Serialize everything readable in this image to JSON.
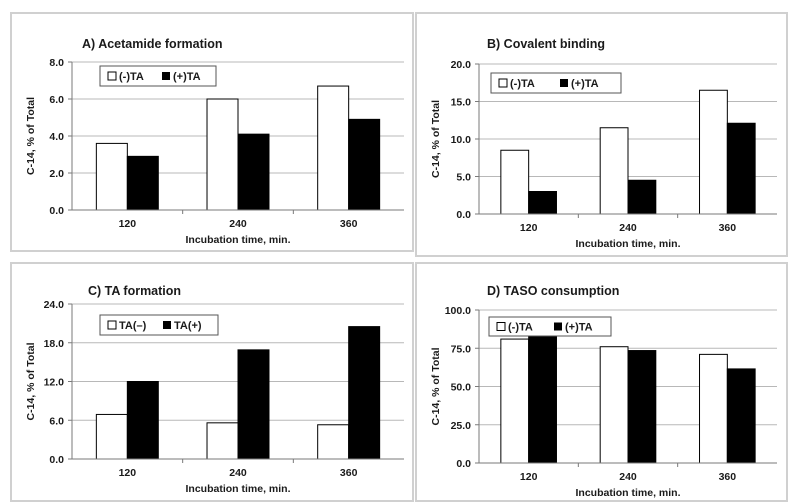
{
  "chart_data": [
    {
      "type": "bar",
      "title": "A) Acetamide formation",
      "ylabel": "C-14, % of Total",
      "xlabel": "Incubation time, min.",
      "categories": [
        "120",
        "240",
        "360"
      ],
      "ylim": [
        0,
        8
      ],
      "yticks": [
        "0.0",
        "2.0",
        "4.0",
        "6.0",
        "8.0"
      ],
      "series": [
        {
          "name": "(-)TA",
          "values": [
            3.6,
            6.0,
            6.7
          ],
          "color": "#ffffff"
        },
        {
          "name": "(+)TA",
          "values": [
            2.9,
            4.1,
            4.9
          ],
          "color": "#000000"
        }
      ],
      "legend": "top-left",
      "grid": true
    },
    {
      "type": "bar",
      "title": "B) Covalent binding",
      "ylabel": "C-14, % of Total",
      "xlabel": "Incubation time, min.",
      "categories": [
        "120",
        "240",
        "360"
      ],
      "ylim": [
        0,
        20
      ],
      "yticks": [
        "0.0",
        "5.0",
        "10.0",
        "15.0",
        "20.0"
      ],
      "series": [
        {
          "name": "(-)TA",
          "values": [
            8.5,
            11.5,
            16.5
          ],
          "color": "#ffffff"
        },
        {
          "name": "(+)TA",
          "values": [
            3.0,
            4.5,
            12.1
          ],
          "color": "#000000"
        }
      ],
      "legend": "top-left",
      "grid": true
    },
    {
      "type": "bar",
      "title": "C) TA formation",
      "ylabel": "C-14, % of Total",
      "xlabel": "Incubation time, min.",
      "categories": [
        "120",
        "240",
        "360"
      ],
      "ylim": [
        0,
        24
      ],
      "yticks": [
        "0.0",
        "6.0",
        "12.0",
        "18.0",
        "24.0"
      ],
      "series": [
        {
          "name": "TA(–)",
          "values": [
            6.9,
            5.6,
            5.3
          ],
          "color": "#ffffff"
        },
        {
          "name": "TA(+)",
          "values": [
            12.0,
            16.9,
            20.5
          ],
          "color": "#000000"
        }
      ],
      "legend": "top-left",
      "grid": true
    },
    {
      "type": "bar",
      "title": "D) TASO consumption",
      "ylabel": "C-14, % of Total",
      "xlabel": "Incubation time, min.",
      "categories": [
        "120",
        "240",
        "360"
      ],
      "ylim": [
        0,
        100
      ],
      "yticks": [
        "0.0",
        "25.0",
        "50.0",
        "75.0",
        "100.0"
      ],
      "series": [
        {
          "name": "(-)TA",
          "values": [
            81,
            76,
            71
          ],
          "color": "#ffffff"
        },
        {
          "name": "(+)TA",
          "values": [
            83,
            73.5,
            61.5
          ],
          "color": "#000000"
        }
      ],
      "legend": "top-left",
      "grid": true
    }
  ]
}
